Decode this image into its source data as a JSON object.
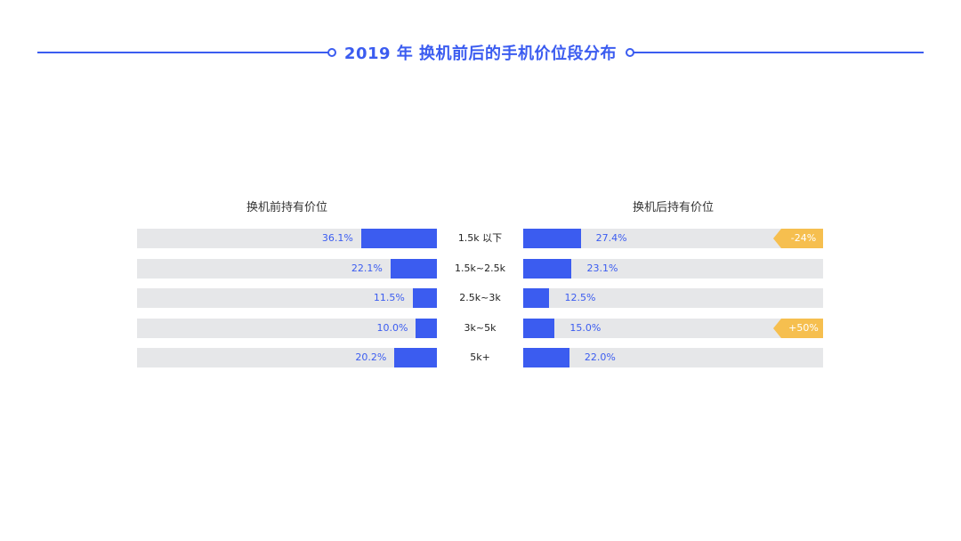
{
  "title": "2019 年 换机前后的手机价位段分布",
  "colors": {
    "accent": "#3b5cf0",
    "track": "#e6e7e9",
    "badge": "#f6bf4f"
  },
  "chart_data": {
    "type": "bar",
    "title": "2019 年 换机前后的手机价位段分布",
    "categories": [
      "1.5k 以下",
      "1.5k~2.5k",
      "2.5k~3k",
      "3k~5k",
      "5k+"
    ],
    "unit": "%",
    "xlim": [
      0,
      100
    ],
    "series": [
      {
        "name": "换机前持有价位",
        "values": [
          36.1,
          22.1,
          11.5,
          10.0,
          20.2
        ],
        "labels": [
          "36.1%",
          "22.1%",
          "11.5%",
          "10.0%",
          "20.2%"
        ]
      },
      {
        "name": "换机后持有价位",
        "values": [
          27.4,
          23.1,
          12.5,
          15.0,
          22.0
        ],
        "labels": [
          "27.4%",
          "23.1%",
          "12.5%",
          "15.0%",
          "22.0%"
        ]
      }
    ],
    "annotations": [
      {
        "category": "1.5k 以下",
        "text": "-24%"
      },
      {
        "category": "1.5k~2.5k",
        "text": ""
      },
      {
        "category": "2.5k~3k",
        "text": ""
      },
      {
        "category": "3k~5k",
        "text": "+50%"
      },
      {
        "category": "5k+",
        "text": ""
      }
    ]
  }
}
